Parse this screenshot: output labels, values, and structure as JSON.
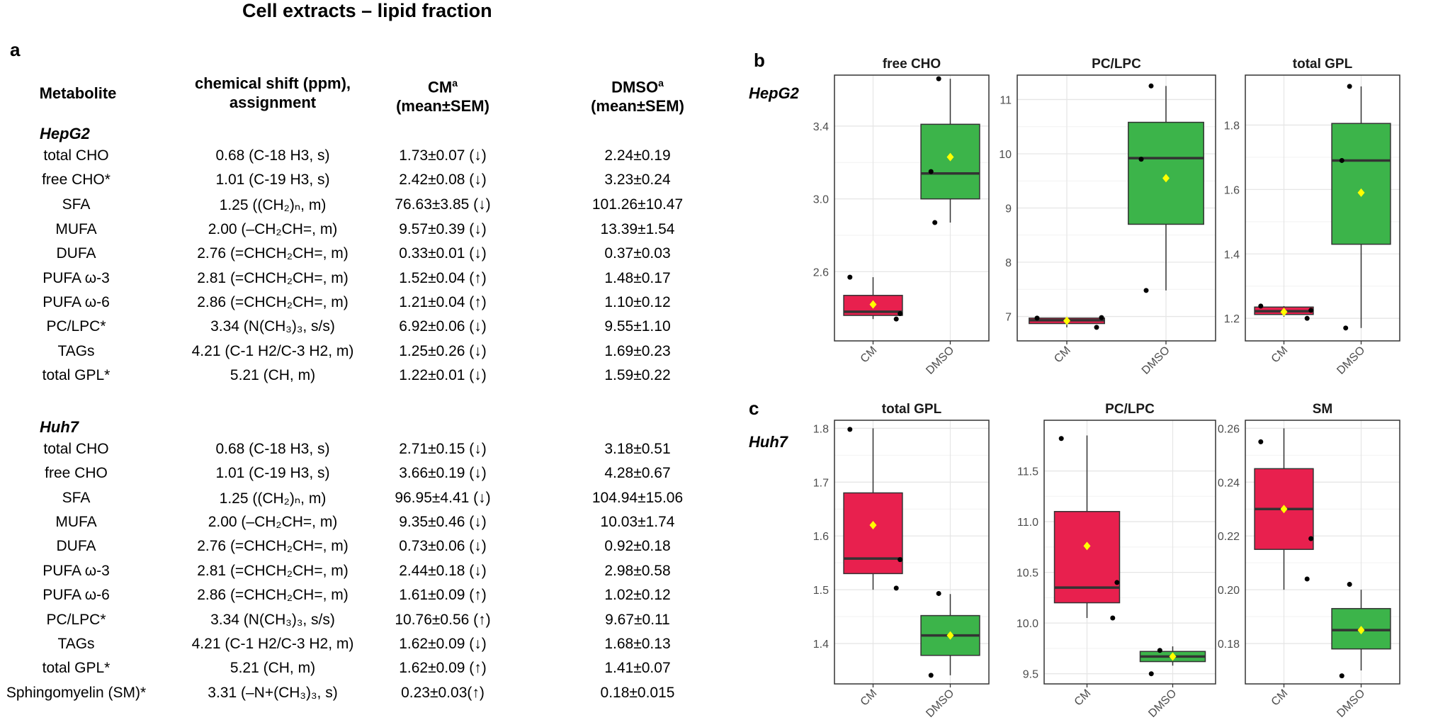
{
  "title": "Cell extracts – lipid fraction",
  "panel_a": "a",
  "panel_b": "b",
  "panel_c": "c",
  "table": {
    "headers": {
      "metabolite": "Metabolite",
      "shift_line1": "chemical shift (ppm),",
      "shift_line2": "assignment",
      "cm": "CM",
      "cm_sup": "a",
      "cm_line2": "(mean±SEM)",
      "dmso": "DMSO",
      "dmso_sup": "a",
      "dmso_line2": "(mean±SEM)"
    },
    "groups": [
      {
        "name": "HepG2",
        "rows": [
          {
            "metabolite": "total CHO",
            "shift": "0.68 (C-18 H3, s)",
            "cm": "1.73±0.07 (↓)",
            "dmso": "2.24±0.19"
          },
          {
            "metabolite": "free CHO*",
            "shift": "1.01 (C-19 H3, s)",
            "cm": "2.42±0.08 (↓)",
            "dmso": "3.23±0.24"
          },
          {
            "metabolite": "SFA",
            "shift": "1.25 ((CH₂)ₙ, m)",
            "cm": "76.63±3.85 (↓)",
            "dmso": "101.26±10.47"
          },
          {
            "metabolite": "MUFA",
            "shift": "2.00 (–CH₂CH=, m)",
            "cm": "9.57±0.39 (↓)",
            "dmso": "13.39±1.54"
          },
          {
            "metabolite": "DUFA",
            "shift": "2.76 (=CHCH₂CH=, m)",
            "cm": "0.33±0.01 (↓)",
            "dmso": "0.37±0.03"
          },
          {
            "metabolite": "PUFA ω-3",
            "shift": "2.81 (=CHCH₂CH=, m)",
            "cm": "1.52±0.04 (↑)",
            "dmso": "1.48±0.17"
          },
          {
            "metabolite": "PUFA ω-6",
            "shift": "2.86 (=CHCH₂CH=, m)",
            "cm": "1.21±0.04 (↑)",
            "dmso": "1.10±0.12"
          },
          {
            "metabolite": "PC/LPC*",
            "shift": "3.34 (N(CH₃)₃, s/s)",
            "cm": "6.92±0.06 (↓)",
            "dmso": "9.55±1.10"
          },
          {
            "metabolite": "TAGs",
            "shift": "4.21 (C-1 H2/C-3 H2, m)",
            "cm": "1.25±0.26 (↓)",
            "dmso": "1.69±0.23"
          },
          {
            "metabolite": "total GPL*",
            "shift": "5.21 (CH, m)",
            "cm": "1.22±0.01 (↓)",
            "dmso": "1.59±0.22"
          }
        ]
      },
      {
        "name": "Huh7",
        "rows": [
          {
            "metabolite": "total CHO",
            "shift": "0.68 (C-18 H3, s)",
            "cm": "2.71±0.15 (↓)",
            "dmso": "3.18±0.51"
          },
          {
            "metabolite": "free CHO",
            "shift": "1.01 (C-19 H3, s)",
            "cm": "3.66±0.19 (↓)",
            "dmso": "4.28±0.67"
          },
          {
            "metabolite": "SFA",
            "shift": "1.25 ((CH₂)ₙ, m)",
            "cm": "96.95±4.41 (↓)",
            "dmso": "104.94±15.06"
          },
          {
            "metabolite": "MUFA",
            "shift": "2.00 (–CH₂CH=, m)",
            "cm": "9.35±0.46 (↓)",
            "dmso": "10.03±1.74"
          },
          {
            "metabolite": "DUFA",
            "shift": "2.76 (=CHCH₂CH=, m)",
            "cm": "0.73±0.06 (↓)",
            "dmso": "0.92±0.18"
          },
          {
            "metabolite": "PUFA ω-3",
            "shift": "2.81 (=CHCH₂CH=, m)",
            "cm": "2.44±0.18 (↓)",
            "dmso": "2.98±0.58"
          },
          {
            "metabolite": "PUFA ω-6",
            "shift": "2.86 (=CHCH₂CH=, m)",
            "cm": "1.61±0.09 (↑)",
            "dmso": "1.02±0.12"
          },
          {
            "metabolite": "PC/LPC*",
            "shift": "3.34 (N(CH₃)₃, s/s)",
            "cm": "10.76±0.56 (↑)",
            "dmso": "9.67±0.11"
          },
          {
            "metabolite": "TAGs",
            "shift": "4.21 (C-1 H2/C-3 H2, m)",
            "cm": "1.62±0.09 (↓)",
            "dmso": "1.68±0.13"
          },
          {
            "metabolite": "total GPL*",
            "shift": "5.21 (CH, m)",
            "cm": "1.62±0.09 (↑)",
            "dmso": "1.41±0.07"
          },
          {
            "metabolite": "Sphingomyelin (SM)*",
            "shift": "3.31 (–N+(CH₃)₃, s)",
            "cm": "0.23±0.03(↑)",
            "dmso": "0.18±0.015"
          }
        ]
      }
    ]
  },
  "row_labels": {
    "b": "HepG2",
    "c": "Huh7"
  },
  "colors": {
    "CM": "#e8204e",
    "DMSO": "#3cb44a",
    "mean": "#ffff00",
    "point": "#000000"
  },
  "chart_data": [
    {
      "type": "box",
      "title": "free CHO",
      "cell_line": "HepG2",
      "categories": [
        "CM",
        "DMSO"
      ],
      "ylim": [
        2.22,
        3.68
      ],
      "yticks": [
        2.6,
        3.0,
        3.4
      ],
      "ytick_labels": [
        "2.6",
        "3.0",
        "3.4"
      ],
      "boxes": [
        {
          "group": "CM",
          "q1": 2.36,
          "median": 2.38,
          "q3": 2.47,
          "whisker_low": 2.34,
          "whisker_high": 2.57,
          "mean": 2.42,
          "points": [
            2.57,
            2.37,
            2.34
          ]
        },
        {
          "group": "DMSO",
          "q1": 3.0,
          "median": 3.14,
          "q3": 3.41,
          "whisker_low": 2.87,
          "whisker_high": 3.66,
          "mean": 3.23,
          "points": [
            3.66,
            3.15,
            2.87
          ]
        }
      ]
    },
    {
      "type": "box",
      "title": "PC/LPC",
      "cell_line": "HepG2",
      "categories": [
        "CM",
        "DMSO"
      ],
      "ylim": [
        6.55,
        11.45
      ],
      "yticks": [
        7,
        8,
        9,
        10,
        11
      ],
      "ytick_labels": [
        "7",
        "8",
        "9",
        "10",
        "11"
      ],
      "boxes": [
        {
          "group": "CM",
          "q1": 6.87,
          "median": 6.93,
          "q3": 6.97,
          "whisker_low": 6.8,
          "whisker_high": 6.98,
          "mean": 6.92,
          "points": [
            6.97,
            6.98,
            6.8
          ]
        },
        {
          "group": "DMSO",
          "q1": 8.7,
          "median": 9.92,
          "q3": 10.58,
          "whisker_low": 7.48,
          "whisker_high": 11.25,
          "mean": 9.55,
          "points": [
            11.25,
            9.9,
            7.48
          ]
        }
      ]
    },
    {
      "type": "box",
      "title": "total GPL",
      "cell_line": "HepG2",
      "categories": [
        "CM",
        "DMSO"
      ],
      "ylim": [
        1.13,
        1.955
      ],
      "yticks": [
        1.2,
        1.4,
        1.6,
        1.8
      ],
      "ytick_labels": [
        "1.2",
        "1.4",
        "1.6",
        "1.8"
      ],
      "boxes": [
        {
          "group": "CM",
          "q1": 1.212,
          "median": 1.222,
          "q3": 1.235,
          "whisker_low": 1.205,
          "whisker_high": 1.238,
          "mean": 1.22,
          "points": [
            1.238,
            1.225,
            1.2
          ]
        },
        {
          "group": "DMSO",
          "q1": 1.43,
          "median": 1.69,
          "q3": 1.805,
          "whisker_low": 1.17,
          "whisker_high": 1.92,
          "mean": 1.59,
          "points": [
            1.92,
            1.69,
            1.17
          ]
        }
      ]
    },
    {
      "type": "box",
      "title": "total GPL",
      "cell_line": "Huh7",
      "categories": [
        "CM",
        "DMSO"
      ],
      "ylim": [
        1.325,
        1.815
      ],
      "yticks": [
        1.4,
        1.5,
        1.6,
        1.7,
        1.8
      ],
      "ytick_labels": [
        "1.4",
        "1.5",
        "1.6",
        "1.7",
        "1.8"
      ],
      "boxes": [
        {
          "group": "CM",
          "q1": 1.53,
          "median": 1.558,
          "q3": 1.68,
          "whisker_low": 1.5,
          "whisker_high": 1.8,
          "mean": 1.62,
          "points": [
            1.798,
            1.556,
            1.503
          ]
        },
        {
          "group": "DMSO",
          "q1": 1.378,
          "median": 1.415,
          "q3": 1.452,
          "whisker_low": 1.341,
          "whisker_high": 1.492,
          "mean": 1.415,
          "points": [
            1.493,
            1.341
          ]
        }
      ]
    },
    {
      "type": "box",
      "title": "PC/LPC",
      "cell_line": "Huh7",
      "categories": [
        "CM",
        "DMSO"
      ],
      "ylim": [
        9.4,
        12.0
      ],
      "yticks": [
        9.5,
        10.0,
        10.5,
        11.0,
        11.5
      ],
      "ytick_labels": [
        "9.5",
        "10.0",
        "10.5",
        "11.0",
        "11.5"
      ],
      "boxes": [
        {
          "group": "CM",
          "q1": 10.2,
          "median": 10.35,
          "q3": 11.1,
          "whisker_low": 10.05,
          "whisker_high": 11.85,
          "mean": 10.76,
          "points": [
            11.82,
            10.4,
            10.05
          ]
        },
        {
          "group": "DMSO",
          "q1": 9.62,
          "median": 9.67,
          "q3": 9.72,
          "whisker_low": 9.58,
          "whisker_high": 9.77,
          "mean": 9.67,
          "points": [
            9.73,
            9.5
          ]
        }
      ]
    },
    {
      "type": "box",
      "title": "SM",
      "cell_line": "Huh7",
      "categories": [
        "CM",
        "DMSO"
      ],
      "ylim": [
        0.165,
        0.263
      ],
      "yticks": [
        0.18,
        0.2,
        0.22,
        0.24,
        0.26
      ],
      "ytick_labels": [
        "0.18",
        "0.20",
        "0.22",
        "0.24",
        "0.26"
      ],
      "boxes": [
        {
          "group": "CM",
          "q1": 0.215,
          "median": 0.23,
          "q3": 0.245,
          "whisker_low": 0.2,
          "whisker_high": 0.26,
          "mean": 0.23,
          "points": [
            0.255,
            0.219,
            0.204
          ]
        },
        {
          "group": "DMSO",
          "q1": 0.178,
          "median": 0.185,
          "q3": 0.193,
          "whisker_low": 0.17,
          "whisker_high": 0.2,
          "mean": 0.185,
          "points": [
            0.202,
            0.168
          ]
        }
      ]
    }
  ]
}
